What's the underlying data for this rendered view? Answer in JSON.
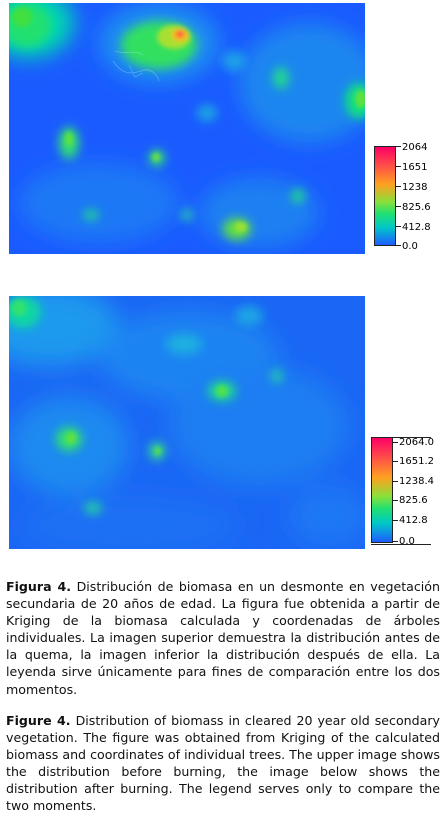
{
  "legend_top": {
    "labels": [
      "2064",
      "1651",
      "1238",
      "825.6",
      "412.8",
      "0.0"
    ],
    "colors": [
      "#ff0066",
      "#ff3355",
      "#ffa020",
      "#40e040",
      "#00c8c8",
      "#1e5cff"
    ]
  },
  "legend_bottom": {
    "labels": [
      "2064.0",
      "1651.2",
      "1238.4",
      "825.6",
      "412.8",
      "0.0"
    ],
    "colors": [
      "#ff0066",
      "#ff3355",
      "#ffa020",
      "#40e040",
      "#00c8c8",
      "#1e5cff"
    ]
  },
  "caption_es": {
    "label": "Figura 4.",
    "text": "Distribución de biomasa en un desmonte en vegetación secundaria de 20 años de edad. La figura fue obtenida a partir de Kriging de la biomasa calculada y coordenadas de árboles individuales. La imagen superior demuestra la distribución antes de la quema, la imagen inferior la distribución después de ella. La leyenda sirve únicamente para fines de comparación entre los dos momentos."
  },
  "caption_en": {
    "label": "Figure 4.",
    "text": "Distribution of biomass in cleared 20 year old secondary vegetation. The figure was obtained from Kriging of the calculated biomass and coordinates of individual trees. The upper image shows the distribution before burning, the image below shows the distribution after burning. The legend serves only to compare the two moments."
  }
}
